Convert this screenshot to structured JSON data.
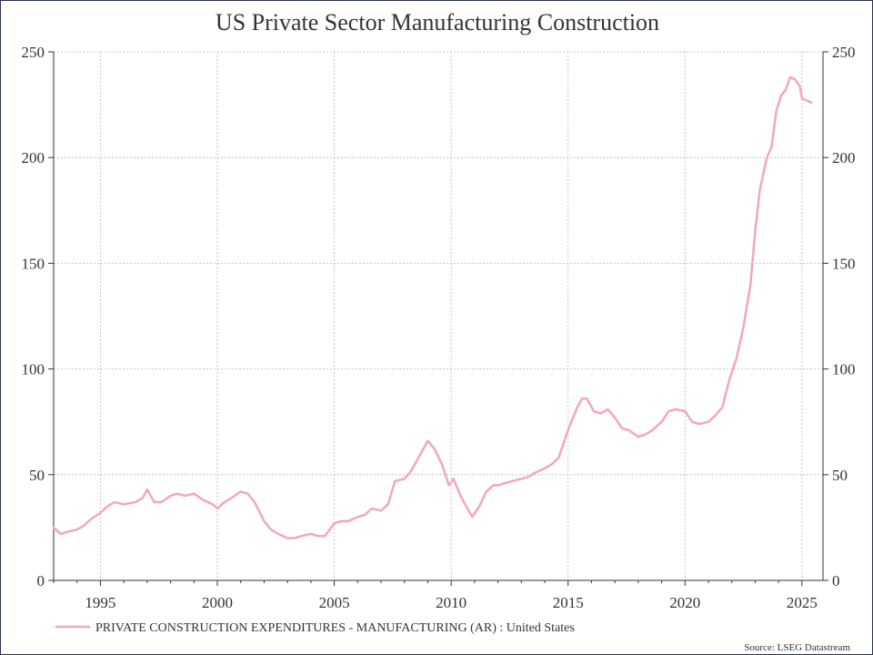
{
  "chart_data": {
    "type": "line",
    "title": "US Private Sector Manufacturing Construction",
    "xlabel": "",
    "ylabel": "",
    "xlim": [
      1993.0,
      2025.9
    ],
    "ylim": [
      0,
      250
    ],
    "x_ticks": [
      "1995",
      "2000",
      "2005",
      "2010",
      "2015",
      "2020",
      "2025"
    ],
    "y_ticks": [
      "0",
      "50",
      "100",
      "150",
      "200",
      "250"
    ],
    "grid": true,
    "legend_position": "bottom-left",
    "source": "Source: LSEG Datastream",
    "series": [
      {
        "name": "PRIVATE CONSTRUCTION EXPENDITURES - MANUFACTURING (AR) : United States",
        "color": "#f4a7b9",
        "points": [
          [
            1993.0,
            25
          ],
          [
            1993.3,
            22
          ],
          [
            1993.6,
            23
          ],
          [
            1994.0,
            24
          ],
          [
            1994.3,
            26
          ],
          [
            1994.6,
            29
          ],
          [
            1995.0,
            32
          ],
          [
            1995.3,
            35
          ],
          [
            1995.6,
            37
          ],
          [
            1996.0,
            36
          ],
          [
            1996.5,
            37
          ],
          [
            1996.8,
            39
          ],
          [
            1997.0,
            43
          ],
          [
            1997.3,
            37
          ],
          [
            1997.6,
            37
          ],
          [
            1998.0,
            40
          ],
          [
            1998.3,
            41
          ],
          [
            1998.6,
            40
          ],
          [
            1999.0,
            41
          ],
          [
            1999.4,
            38
          ],
          [
            1999.8,
            36
          ],
          [
            2000.0,
            34
          ],
          [
            2000.3,
            37
          ],
          [
            2000.6,
            39
          ],
          [
            2001.0,
            42
          ],
          [
            2001.3,
            41
          ],
          [
            2001.6,
            37
          ],
          [
            2002.0,
            28
          ],
          [
            2002.3,
            24
          ],
          [
            2002.6,
            22
          ],
          [
            2003.0,
            20
          ],
          [
            2003.3,
            20
          ],
          [
            2003.6,
            21
          ],
          [
            2004.0,
            22
          ],
          [
            2004.3,
            21
          ],
          [
            2004.6,
            21
          ],
          [
            2005.0,
            27
          ],
          [
            2005.3,
            28
          ],
          [
            2005.6,
            28
          ],
          [
            2006.0,
            30
          ],
          [
            2006.3,
            31
          ],
          [
            2006.6,
            34
          ],
          [
            2007.0,
            33
          ],
          [
            2007.3,
            36
          ],
          [
            2007.6,
            47
          ],
          [
            2008.0,
            48
          ],
          [
            2008.3,
            52
          ],
          [
            2008.6,
            58
          ],
          [
            2009.0,
            66
          ],
          [
            2009.3,
            62
          ],
          [
            2009.6,
            55
          ],
          [
            2009.9,
            45
          ],
          [
            2010.1,
            48
          ],
          [
            2010.4,
            40
          ],
          [
            2010.7,
            34
          ],
          [
            2010.9,
            30
          ],
          [
            2011.2,
            35
          ],
          [
            2011.5,
            42
          ],
          [
            2011.8,
            45
          ],
          [
            2012.0,
            45
          ],
          [
            2012.3,
            46
          ],
          [
            2012.6,
            47
          ],
          [
            2013.0,
            48
          ],
          [
            2013.3,
            49
          ],
          [
            2013.6,
            51
          ],
          [
            2014.0,
            53
          ],
          [
            2014.3,
            55
          ],
          [
            2014.6,
            58
          ],
          [
            2014.9,
            68
          ],
          [
            2015.1,
            74
          ],
          [
            2015.4,
            82
          ],
          [
            2015.6,
            86
          ],
          [
            2015.8,
            86
          ],
          [
            2016.1,
            80
          ],
          [
            2016.4,
            79
          ],
          [
            2016.7,
            81
          ],
          [
            2017.0,
            77
          ],
          [
            2017.3,
            72
          ],
          [
            2017.6,
            71
          ],
          [
            2018.0,
            68
          ],
          [
            2018.3,
            69
          ],
          [
            2018.6,
            71
          ],
          [
            2019.0,
            75
          ],
          [
            2019.3,
            80
          ],
          [
            2019.6,
            81
          ],
          [
            2020.0,
            80
          ],
          [
            2020.3,
            75
          ],
          [
            2020.6,
            74
          ],
          [
            2021.0,
            75
          ],
          [
            2021.3,
            78
          ],
          [
            2021.6,
            82
          ],
          [
            2021.9,
            95
          ],
          [
            2022.2,
            105
          ],
          [
            2022.5,
            120
          ],
          [
            2022.8,
            140
          ],
          [
            2023.0,
            165
          ],
          [
            2023.2,
            185
          ],
          [
            2023.5,
            200
          ],
          [
            2023.7,
            205
          ],
          [
            2023.9,
            222
          ],
          [
            2024.1,
            229
          ],
          [
            2024.3,
            232
          ],
          [
            2024.5,
            238
          ],
          [
            2024.7,
            237
          ],
          [
            2024.9,
            234
          ],
          [
            2025.0,
            228
          ],
          [
            2025.2,
            227
          ],
          [
            2025.4,
            226
          ]
        ]
      }
    ]
  }
}
